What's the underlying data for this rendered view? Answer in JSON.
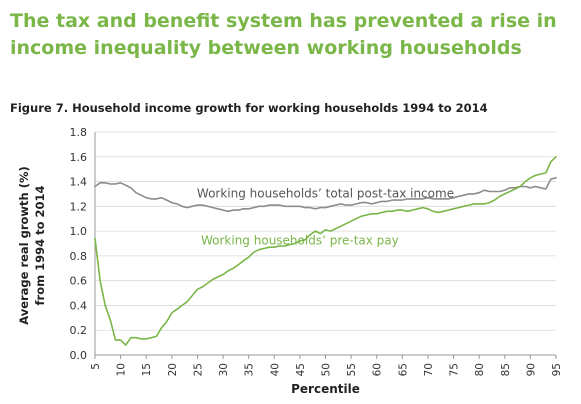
{
  "headline": "The tax and benefit system has prevented a rise in income inequality between working households",
  "figure_title": "Figure 7. Household income growth for working households 1994 to 2014",
  "chart_data": {
    "type": "line",
    "xlabel": "Percentile",
    "ylabel_lines": [
      "Average real growth (%)",
      "from 1994 to 2014"
    ],
    "xlim": [
      5,
      95
    ],
    "ylim": [
      0,
      1.8
    ],
    "x_ticks": [
      "5",
      "10",
      "15",
      "20",
      "25",
      "30",
      "35",
      "40",
      "45",
      "50",
      "55",
      "60",
      "65",
      "70",
      "75",
      "80",
      "85",
      "90",
      "95"
    ],
    "y_ticks": [
      "0.0",
      "0.2",
      "0.4",
      "0.6",
      "0.8",
      "1.0",
      "1.2",
      "1.4",
      "1.6",
      "1.8"
    ],
    "grid": "horizontal",
    "legend": "inline annotations",
    "series": [
      {
        "name": "Working households' total post-tax income",
        "color": "#8c8c8c",
        "x": [
          5,
          6,
          7,
          8,
          9,
          10,
          11,
          12,
          13,
          14,
          15,
          16,
          17,
          18,
          19,
          20,
          21,
          22,
          23,
          24,
          25,
          26,
          27,
          28,
          29,
          30,
          31,
          32,
          33,
          34,
          35,
          36,
          37,
          38,
          39,
          40,
          41,
          42,
          43,
          44,
          45,
          46,
          47,
          48,
          49,
          50,
          51,
          52,
          53,
          54,
          55,
          56,
          57,
          58,
          59,
          60,
          61,
          62,
          63,
          64,
          65,
          66,
          67,
          68,
          69,
          70,
          71,
          72,
          73,
          74,
          75,
          76,
          77,
          78,
          79,
          80,
          81,
          82,
          83,
          84,
          85,
          86,
          87,
          88,
          89,
          90,
          91,
          92,
          93,
          94,
          95
        ],
        "y": [
          1.36,
          1.39,
          1.39,
          1.38,
          1.38,
          1.39,
          1.37,
          1.35,
          1.31,
          1.29,
          1.27,
          1.26,
          1.26,
          1.27,
          1.25,
          1.23,
          1.22,
          1.2,
          1.19,
          1.2,
          1.21,
          1.21,
          1.2,
          1.19,
          1.18,
          1.17,
          1.16,
          1.17,
          1.17,
          1.18,
          1.18,
          1.19,
          1.2,
          1.2,
          1.21,
          1.21,
          1.21,
          1.2,
          1.2,
          1.2,
          1.2,
          1.19,
          1.19,
          1.18,
          1.19,
          1.19,
          1.2,
          1.21,
          1.22,
          1.21,
          1.21,
          1.22,
          1.23,
          1.23,
          1.22,
          1.23,
          1.24,
          1.24,
          1.25,
          1.25,
          1.25,
          1.26,
          1.26,
          1.26,
          1.26,
          1.27,
          1.26,
          1.26,
          1.26,
          1.26,
          1.27,
          1.28,
          1.29,
          1.3,
          1.3,
          1.31,
          1.33,
          1.32,
          1.32,
          1.32,
          1.33,
          1.35,
          1.35,
          1.36,
          1.36,
          1.35,
          1.36,
          1.35,
          1.34,
          1.42,
          1.43
        ]
      },
      {
        "name": "Working households' pre-tax pay",
        "color": "#7ab648",
        "x": [
          5,
          6,
          7,
          8,
          9,
          10,
          11,
          12,
          13,
          14,
          15,
          16,
          17,
          18,
          19,
          20,
          21,
          22,
          23,
          24,
          25,
          26,
          27,
          28,
          29,
          30,
          31,
          32,
          33,
          34,
          35,
          36,
          37,
          38,
          39,
          40,
          41,
          42,
          43,
          44,
          45,
          46,
          47,
          48,
          49,
          50,
          51,
          52,
          53,
          54,
          55,
          56,
          57,
          58,
          59,
          60,
          61,
          62,
          63,
          64,
          65,
          66,
          67,
          68,
          69,
          70,
          71,
          72,
          73,
          74,
          75,
          76,
          77,
          78,
          79,
          80,
          81,
          82,
          83,
          84,
          85,
          86,
          87,
          88,
          89,
          90,
          91,
          92,
          93,
          94,
          95
        ],
        "y": [
          0.94,
          0.6,
          0.4,
          0.28,
          0.12,
          0.12,
          0.08,
          0.14,
          0.14,
          0.13,
          0.13,
          0.14,
          0.15,
          0.22,
          0.27,
          0.34,
          0.37,
          0.4,
          0.43,
          0.48,
          0.53,
          0.55,
          0.58,
          0.61,
          0.63,
          0.65,
          0.68,
          0.7,
          0.73,
          0.76,
          0.79,
          0.83,
          0.85,
          0.86,
          0.87,
          0.87,
          0.88,
          0.88,
          0.89,
          0.9,
          0.92,
          0.93,
          0.97,
          1.0,
          0.98,
          1.01,
          1.0,
          1.02,
          1.04,
          1.06,
          1.08,
          1.1,
          1.12,
          1.13,
          1.14,
          1.14,
          1.15,
          1.16,
          1.16,
          1.17,
          1.17,
          1.16,
          1.17,
          1.18,
          1.19,
          1.18,
          1.16,
          1.15,
          1.16,
          1.17,
          1.18,
          1.19,
          1.2,
          1.21,
          1.22,
          1.22,
          1.22,
          1.23,
          1.25,
          1.28,
          1.3,
          1.32,
          1.34,
          1.36,
          1.4,
          1.43,
          1.45,
          1.46,
          1.47,
          1.56,
          1.6
        ]
      }
    ],
    "annotations": [
      {
        "text": "Working households’ total post-tax income",
        "color": "#555555",
        "x": 50,
        "y": 1.27
      },
      {
        "text": "Working households’ pre-tax pay",
        "color": "#7ab648",
        "x": 45,
        "y": 0.89
      }
    ]
  }
}
